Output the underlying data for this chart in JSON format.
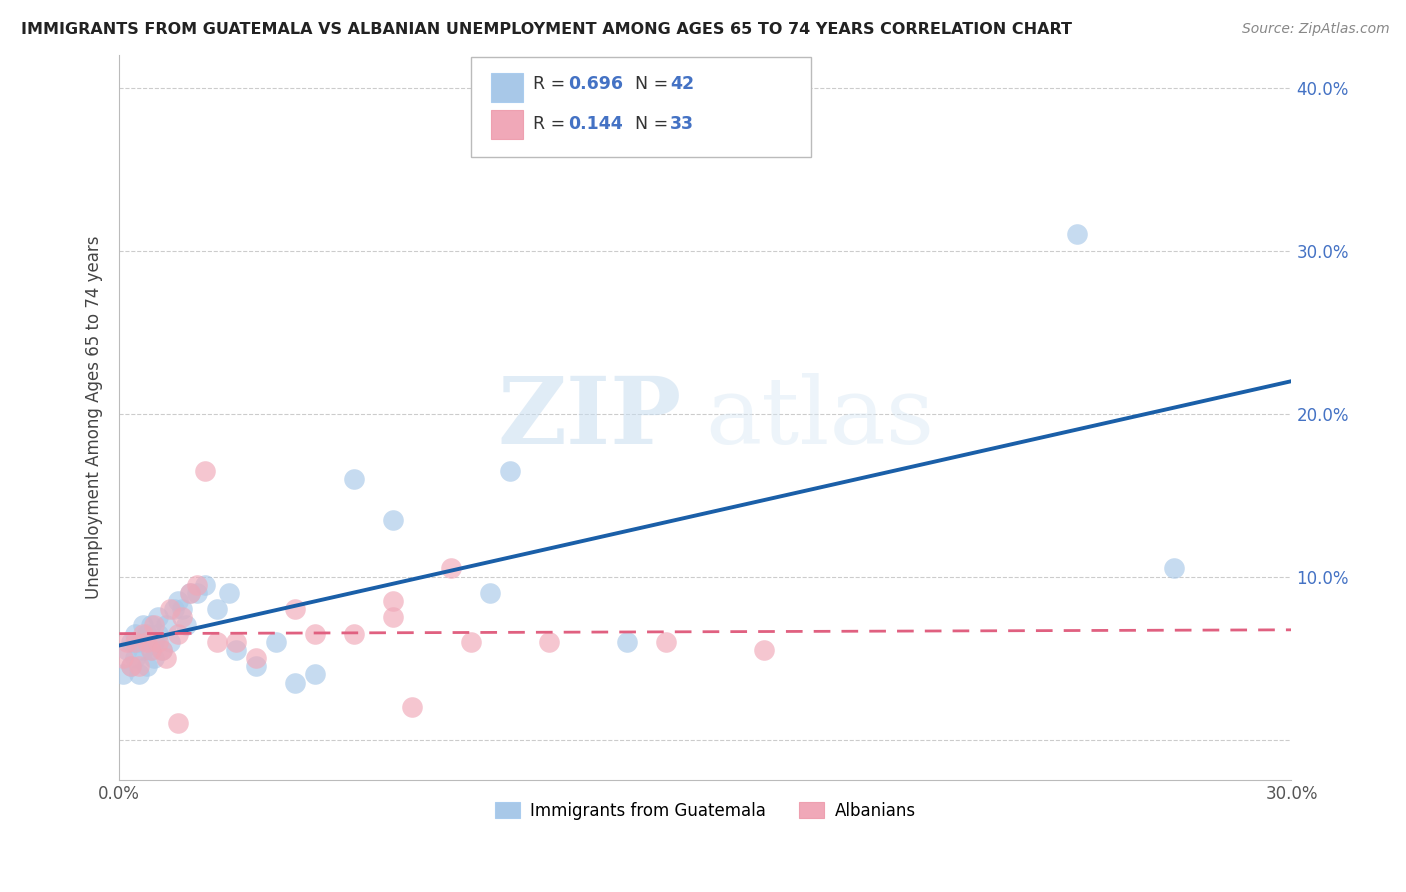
{
  "title": "IMMIGRANTS FROM GUATEMALA VS ALBANIAN UNEMPLOYMENT AMONG AGES 65 TO 74 YEARS CORRELATION CHART",
  "source": "Source: ZipAtlas.com",
  "ylabel": "Unemployment Among Ages 65 to 74 years",
  "xlim": [
    0.0,
    0.3
  ],
  "ylim": [
    -0.025,
    0.42
  ],
  "legend_label1": "Immigrants from Guatemala",
  "legend_label2": "Albanians",
  "blue_color": "#a8c8e8",
  "pink_color": "#f0a8b8",
  "trendline_blue": "#1a5fa8",
  "trendline_pink": "#e06080",
  "watermark_zip": "ZIP",
  "watermark_atlas": "atlas",
  "guatemala_x": [
    0.001,
    0.002,
    0.003,
    0.003,
    0.004,
    0.004,
    0.005,
    0.005,
    0.006,
    0.006,
    0.007,
    0.007,
    0.008,
    0.008,
    0.009,
    0.009,
    0.01,
    0.01,
    0.011,
    0.012,
    0.013,
    0.014,
    0.015,
    0.016,
    0.017,
    0.018,
    0.02,
    0.022,
    0.025,
    0.028,
    0.03,
    0.035,
    0.04,
    0.045,
    0.05,
    0.06,
    0.07,
    0.095,
    0.1,
    0.13,
    0.245,
    0.27
  ],
  "guatemala_y": [
    0.04,
    0.055,
    0.045,
    0.06,
    0.05,
    0.065,
    0.04,
    0.06,
    0.055,
    0.07,
    0.045,
    0.065,
    0.055,
    0.07,
    0.06,
    0.05,
    0.065,
    0.075,
    0.055,
    0.07,
    0.06,
    0.08,
    0.085,
    0.08,
    0.07,
    0.09,
    0.09,
    0.095,
    0.08,
    0.09,
    0.055,
    0.045,
    0.06,
    0.035,
    0.04,
    0.16,
    0.135,
    0.09,
    0.165,
    0.06,
    0.31,
    0.105
  ],
  "albanian_x": [
    0.001,
    0.002,
    0.003,
    0.004,
    0.005,
    0.006,
    0.007,
    0.008,
    0.009,
    0.01,
    0.011,
    0.012,
    0.013,
    0.015,
    0.016,
    0.018,
    0.02,
    0.022,
    0.03,
    0.035,
    0.045,
    0.05,
    0.06,
    0.07,
    0.075,
    0.085,
    0.09,
    0.11,
    0.14,
    0.165,
    0.07,
    0.025,
    0.015
  ],
  "albanian_y": [
    0.05,
    0.06,
    0.045,
    0.06,
    0.045,
    0.065,
    0.06,
    0.055,
    0.07,
    0.06,
    0.055,
    0.05,
    0.08,
    0.065,
    0.075,
    0.09,
    0.095,
    0.165,
    0.06,
    0.05,
    0.08,
    0.065,
    0.065,
    0.075,
    0.02,
    0.105,
    0.06,
    0.06,
    0.06,
    0.055,
    0.085,
    0.06,
    0.01
  ]
}
